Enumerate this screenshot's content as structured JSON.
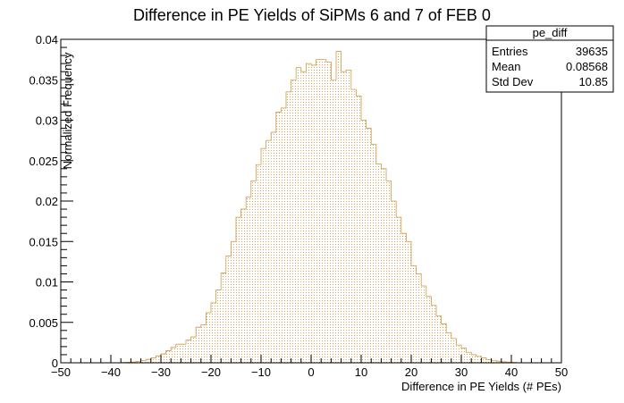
{
  "chart_data": {
    "type": "bar",
    "title": "Difference in PE Yields of SiPMs 6 and 7 of FEB 0",
    "xlabel": "Difference in PE Yields (# PEs)",
    "ylabel": "Normalized Frequency",
    "xlim": [
      -50,
      50
    ],
    "ylim": [
      0,
      0.04
    ],
    "xticks": [
      "−50",
      "−40",
      "−30",
      "−20",
      "−10",
      "0",
      "10",
      "20",
      "30",
      "40",
      "50"
    ],
    "yticks": [
      "0",
      "0.005",
      "0.01",
      "0.015",
      "0.02",
      "0.025",
      "0.03",
      "0.035",
      "0.04"
    ],
    "bin_width": 1,
    "bins_start": -38,
    "values": [
      4e-05,
      6e-05,
      0.0001,
      0.00018,
      0.00028,
      0.00042,
      0.0006,
      0.00085,
      0.0011,
      0.0015,
      0.0019,
      0.0023,
      0.0023,
      0.0028,
      0.0032,
      0.0044,
      0.0047,
      0.0062,
      0.0074,
      0.009,
      0.0111,
      0.0132,
      0.015,
      0.018,
      0.019,
      0.0205,
      0.0225,
      0.0245,
      0.0265,
      0.0275,
      0.0285,
      0.031,
      0.0315,
      0.0335,
      0.035,
      0.0365,
      0.036,
      0.037,
      0.0368,
      0.0375,
      0.0375,
      0.0372,
      0.035,
      0.0385,
      0.036,
      0.0362,
      0.0338,
      0.033,
      0.03,
      0.029,
      0.027,
      0.0246,
      0.024,
      0.0225,
      0.02,
      0.018,
      0.016,
      0.015,
      0.012,
      0.011,
      0.0095,
      0.0082,
      0.0071,
      0.0058,
      0.0048,
      0.0037,
      0.003,
      0.0022,
      0.0018,
      0.0013,
      0.001,
      0.0008,
      0.0006,
      0.0004,
      0.0003,
      0.0002,
      0.00012,
      8e-05,
      5e-05
    ],
    "bar_fill": "#ecdcc6",
    "bar_stroke": "#d39a4a",
    "legend_position": "top-right",
    "stats": {
      "name": "pe_diff",
      "rows": [
        {
          "label": "Entries",
          "value": "39635"
        },
        {
          "label": "Mean",
          "value": "0.08568"
        },
        {
          "label": "Std Dev",
          "value": "10.85"
        }
      ]
    }
  }
}
